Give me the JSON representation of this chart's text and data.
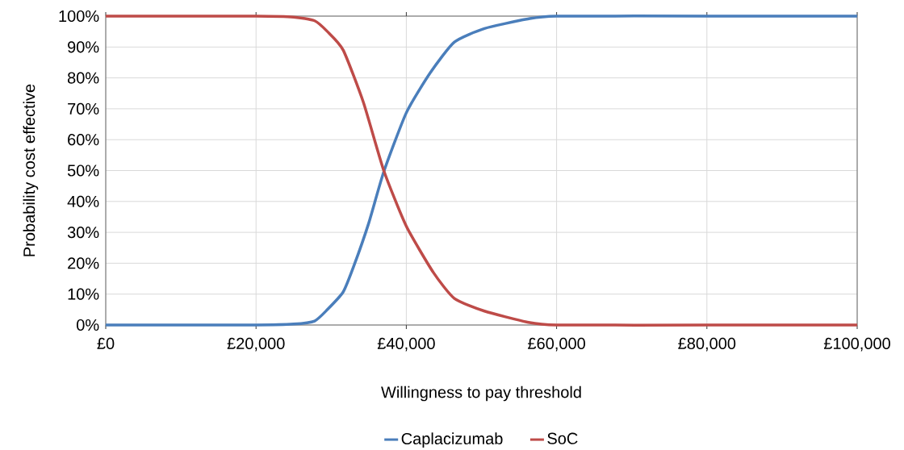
{
  "chart_data": {
    "type": "line",
    "xlabel": "Willingness to pay threshold",
    "ylabel": "Probability cost effective",
    "xlim": [
      0,
      100000
    ],
    "ylim": [
      0,
      100
    ],
    "xticks": [
      {
        "value": 0,
        "label": "£0"
      },
      {
        "value": 20000,
        "label": "£20,000"
      },
      {
        "value": 40000,
        "label": "£40,000"
      },
      {
        "value": 60000,
        "label": "£60,000"
      },
      {
        "value": 80000,
        "label": "£80,000"
      },
      {
        "value": 100000,
        "label": "£100,000"
      }
    ],
    "yticks": [
      {
        "value": 0,
        "label": "0%"
      },
      {
        "value": 10,
        "label": "10%"
      },
      {
        "value": 20,
        "label": "20%"
      },
      {
        "value": 30,
        "label": "30%"
      },
      {
        "value": 40,
        "label": "40%"
      },
      {
        "value": 50,
        "label": "50%"
      },
      {
        "value": 60,
        "label": "60%"
      },
      {
        "value": 70,
        "label": "70%"
      },
      {
        "value": 80,
        "label": "80%"
      },
      {
        "value": 90,
        "label": "90%"
      },
      {
        "value": 100,
        "label": "100%"
      }
    ],
    "grid": true,
    "legend": "bottom",
    "marker": "none",
    "line_style": "solid",
    "series": [
      {
        "name": "Caplacizumab",
        "color": "#4a7ebb",
        "x": [
          0,
          20000,
          25000,
          27800,
          29500,
          31600,
          33000,
          35000,
          37000,
          40000,
          43200,
          46400,
          50400,
          56000,
          60000,
          80000,
          100000
        ],
        "values": [
          0,
          0,
          0.3,
          1.3,
          5,
          10.7,
          19,
          33,
          49.6,
          68.7,
          81.7,
          91.6,
          96,
          99,
          100,
          100,
          100
        ]
      },
      {
        "name": "SoC",
        "color": "#be4b48",
        "x": [
          0,
          20000,
          25000,
          27800,
          29500,
          31600,
          34300,
          37000,
          40000,
          43600,
          46400,
          50400,
          56000,
          60000,
          80000,
          100000
        ],
        "values": [
          100,
          100,
          99.7,
          98.5,
          95,
          89,
          72,
          50,
          32,
          17,
          8.6,
          4.5,
          1,
          0,
          0,
          0
        ]
      }
    ]
  }
}
